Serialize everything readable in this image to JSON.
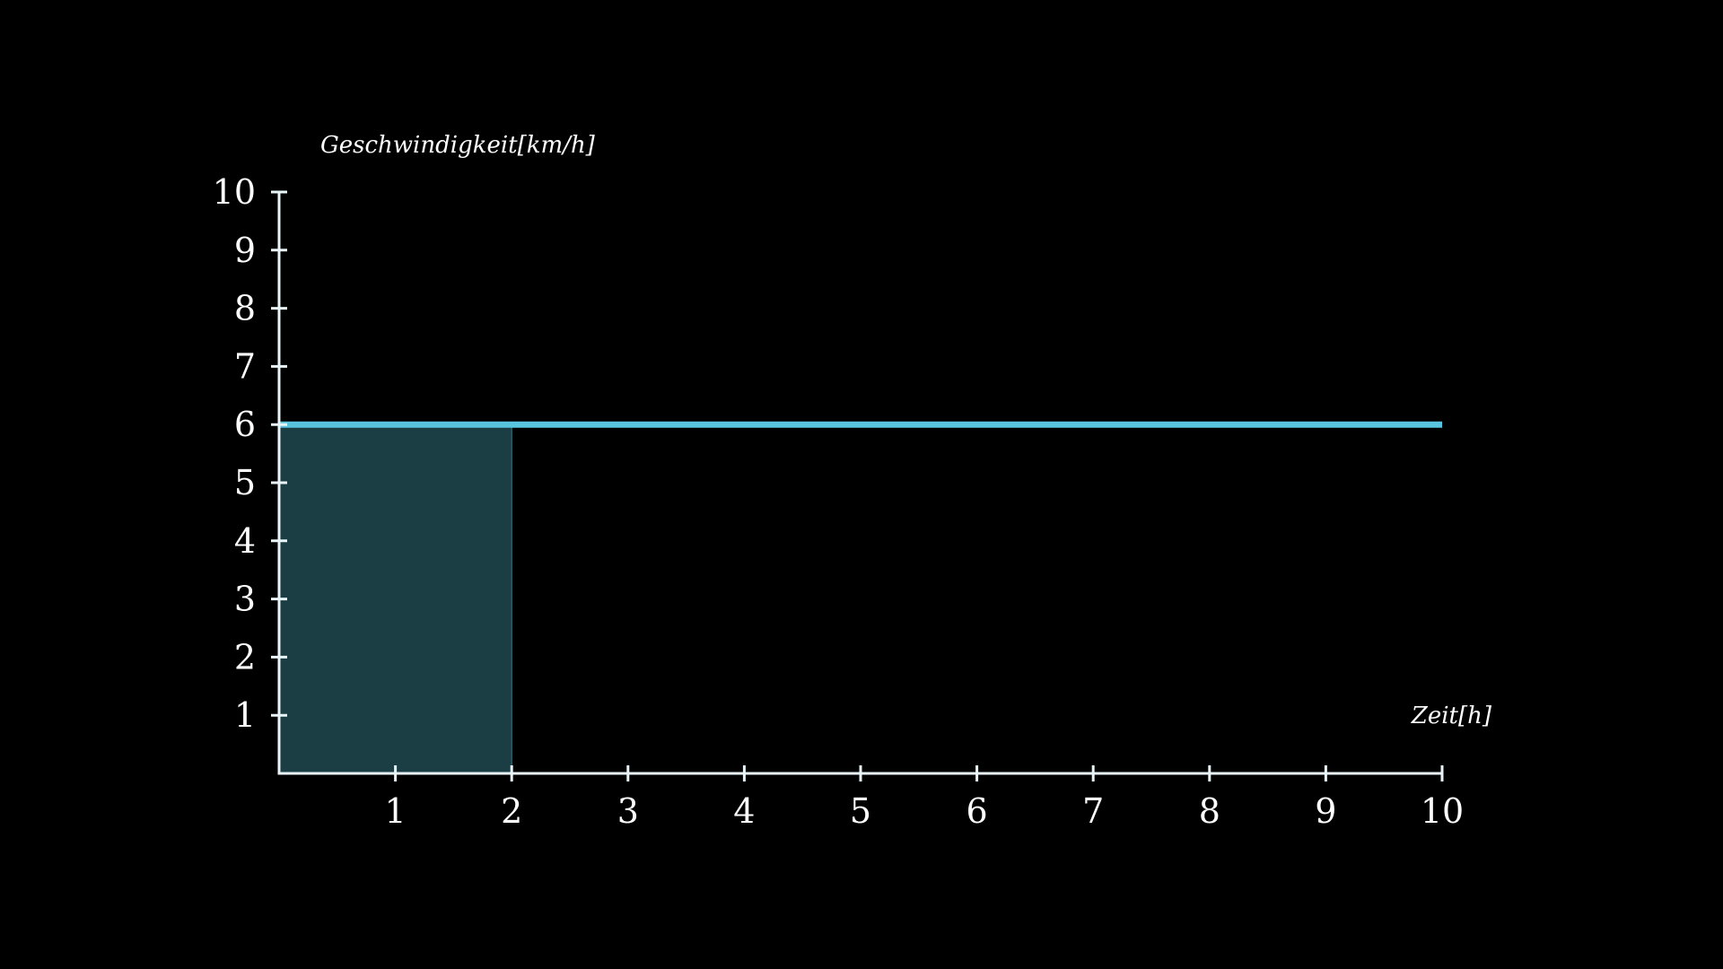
{
  "chart_data": {
    "type": "line",
    "title": "",
    "xlabel": "Zeit[h]",
    "ylabel": "Geschwindigkeit[km/h]",
    "xlim": [
      0,
      10
    ],
    "ylim": [
      0,
      10
    ],
    "x_ticks": [
      1,
      2,
      3,
      4,
      5,
      6,
      7,
      8,
      9,
      10
    ],
    "y_ticks": [
      1,
      2,
      3,
      4,
      5,
      6,
      7,
      8,
      9,
      10
    ],
    "grid": false,
    "series": [
      {
        "x": [
          0,
          10
        ],
        "y": [
          6,
          6
        ]
      }
    ],
    "shaded_area": {
      "x_start": 0,
      "x_end": 2,
      "y_start": 0,
      "y_end": 6
    },
    "colors": {
      "background": "#000000",
      "axis": "#e8f4f8",
      "line": "#58c4dd",
      "area": "#1b3d44"
    }
  }
}
